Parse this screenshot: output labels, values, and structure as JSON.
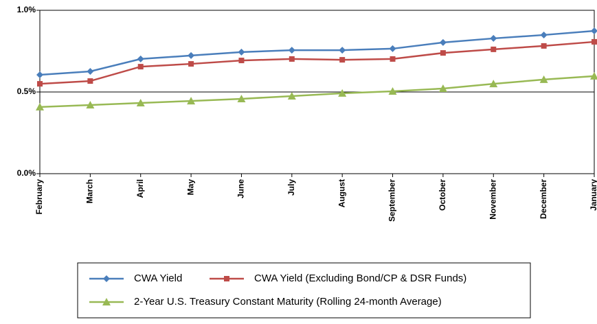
{
  "chart_data": {
    "type": "line",
    "categories": [
      "February",
      "March",
      "April",
      "May",
      "June",
      "July",
      "August",
      "September",
      "October",
      "November",
      "December",
      "January"
    ],
    "series": [
      {
        "name": "CWA Yield",
        "color": "#4a7ebb",
        "marker": "diamond",
        "values": [
          0.605,
          0.626,
          0.702,
          0.723,
          0.744,
          0.756,
          0.756,
          0.765,
          0.803,
          0.828,
          0.849,
          0.874
        ]
      },
      {
        "name": "CWA Yield (Excluding Bond/CP & DSR Funds)",
        "color": "#be4b48",
        "marker": "square",
        "values": [
          0.55,
          0.567,
          0.655,
          0.672,
          0.693,
          0.702,
          0.697,
          0.702,
          0.739,
          0.761,
          0.782,
          0.807
        ]
      },
      {
        "name": "2-Year U.S. Treasury Constant Maturity (Rolling 24-month Average)",
        "color": "#98b954",
        "marker": "triangle",
        "values": [
          0.408,
          0.42,
          0.433,
          0.445,
          0.458,
          0.475,
          0.492,
          0.504,
          0.521,
          0.55,
          0.576,
          0.597
        ]
      }
    ],
    "ylim": [
      0,
      1
    ],
    "yticks": [
      {
        "value": 0,
        "label": "0.0%"
      },
      {
        "value": 0.5,
        "label": "0.5%"
      },
      {
        "value": 1,
        "label": "1.0%"
      }
    ],
    "grid": true
  }
}
